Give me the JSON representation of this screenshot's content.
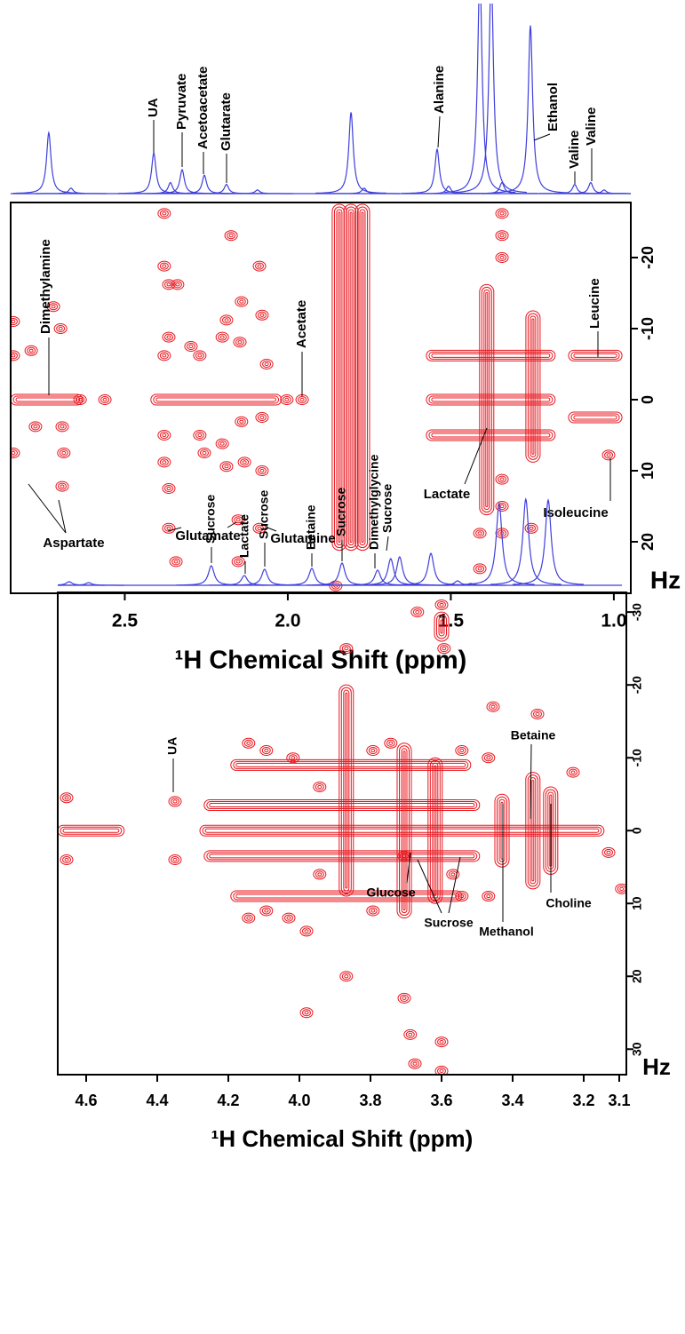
{
  "chart_data": [
    {
      "type": "jres",
      "xlabel": "¹H Chemical Shift (ppm)",
      "ylabel": "Hz",
      "xlim": [
        2.85,
        0.948
      ],
      "xticks": [
        2.5,
        {
          "value": 2,
          "label": "2.0"
        },
        1.5,
        {
          "value": 1,
          "label": "1.0"
        }
      ],
      "ylim": [
        27.25,
        -27.75
      ],
      "yticks": [
        -20,
        -10,
        0,
        10,
        20
      ],
      "projection": {
        "color": "#3f3fdd",
        "x": [
          2.733,
          2.665,
          2.411,
          2.36,
          2.324,
          2.256,
          2.188,
          2.093,
          1.806,
          1.766,
          1.542,
          1.507,
          1.411,
          1.376,
          1.343,
          1.256,
          1.12,
          1.071,
          1.03
        ],
        "values": [
          0.33,
          0.03,
          0.22,
          0.06,
          0.13,
          0.1,
          0.05,
          0.02,
          0.44,
          0.03,
          0.24,
          0.04,
          1.2,
          1.2,
          0.06,
          0.91,
          0.05,
          0.06,
          0.02
        ]
      },
      "contours": {
        "color": "#e8141c",
        "spots": {
          "x": [
            2.842,
            2.842,
            2.842,
            2.787,
            2.774,
            2.719,
            2.697,
            2.692,
            2.687,
            2.692,
            2.637,
            2.561,
            2.379,
            2.379,
            2.365,
            2.365,
            2.379,
            2.379,
            2.379,
            2.365,
            2.365,
            2.338,
            2.297,
            2.27,
            2.27,
            2.256,
            2.201,
            2.201,
            2.188,
            2.188,
            2.174,
            2.142,
            2.147,
            2.142,
            2.133,
            2.152,
            2.087,
            2.079,
            2.065,
            2.079,
            2.079,
            2.087,
            2.343,
            2.152,
            2.003,
            1.956,
            1.853,
            1.343,
            1.343,
            1.343,
            1.343,
            1.343,
            1.343,
            1.411,
            1.411,
            1.253,
            1.016
          ],
          "y": [
            -11,
            -6.2,
            7.5,
            -6.9,
            3.8,
            -13.1,
            -10,
            3.8,
            7.5,
            12.2,
            0,
            0,
            -26.2,
            -18.8,
            -16.2,
            -8.8,
            -6.2,
            5,
            8.8,
            12.5,
            18.1,
            -16.2,
            -7.5,
            -6.2,
            5,
            7.5,
            -8.8,
            6.2,
            -11.2,
            9.4,
            -23.1,
            -13.8,
            -8.1,
            3.1,
            8.8,
            16.9,
            -18.8,
            -11.9,
            -5,
            2.5,
            10,
            18.1,
            22.8,
            22.8,
            0,
            0,
            26.2,
            -26.2,
            -23.1,
            -20,
            11.2,
            15,
            18.8,
            18.8,
            23.8,
            18.1,
            7.8
          ]
        },
        "vridges": {
          "x": [
            1.842,
            1.806,
            1.771,
            1.39,
            1.248
          ],
          "y0": [
            -27.5,
            -27.5,
            -27.5,
            -16.2,
            -12.5
          ],
          "y1": [
            21.2,
            21.2,
            21.2,
            16.2,
            8.8
          ]
        },
        "hridges": {
          "y": [
            0,
            0,
            -6.2,
            0,
            5,
            -6.2,
            2.5
          ],
          "x0": [
            2.85,
            2.42,
            1.575,
            1.575,
            1.575,
            1.139,
            1.139
          ],
          "x1": [
            2.63,
            2.02,
            1.18,
            1.18,
            1.18,
            0.975,
            0.975
          ]
        }
      },
      "annotations": [
        "UA",
        "Pyruvate",
        "Acetoacetate",
        "Glutarate",
        "Alanine",
        "Ethanol",
        "Valine",
        "Valine",
        "Dimethylamine",
        "Acetate",
        "Leucine",
        "Aspartate",
        "Glutamate",
        "Glutamine",
        "Lactate",
        "Isoleucine"
      ]
    },
    {
      "type": "jres",
      "xlabel": "¹H Chemical Shift (ppm)",
      "ylabel": "Hz",
      "xlim": [
        4.68,
        3.08
      ],
      "xticks": [
        4.6,
        4.4,
        4.2,
        {
          "value": 4,
          "label": "4.0"
        },
        3.8,
        3.6,
        3.4,
        3.2,
        3.1
      ],
      "ylim": [
        33.5,
        -32.7
      ],
      "yticks": [
        -30,
        -20,
        -10,
        0,
        10,
        20,
        30
      ],
      "projection": {
        "color": "#3f3fdd",
        "x": [
          4.648,
          4.593,
          4.248,
          4.155,
          4.098,
          3.965,
          3.88,
          3.78,
          3.743,
          3.718,
          3.63,
          3.555,
          3.518,
          3.438,
          3.363,
          3.3
        ],
        "values": [
          0.04,
          0.03,
          0.22,
          0.11,
          0.18,
          0.19,
          0.25,
          0.17,
          0.3,
          0.32,
          0.36,
          0.05,
          0.02,
          0.92,
          0.97,
          0.96
        ]
      },
      "contours": {
        "color": "#e8141c",
        "spots": {
          "x": [
            4.655,
            4.655,
            4.35,
            4.35,
            3.868,
            3.668,
            3.6,
            3.593,
            3.455,
            3.33,
            3.98,
            3.98,
            3.868,
            3.705,
            3.688,
            3.675,
            3.6,
            3.6,
            3.093,
            3.13,
            4.143,
            4.093,
            4.018,
            3.793,
            3.743,
            3.543,
            3.468,
            4.143,
            4.093,
            4.03,
            3.793,
            3.543,
            3.468,
            3.568,
            3.23,
            3.943,
            3.943,
            3.705
          ],
          "y": [
            -4.5,
            4,
            -4,
            4,
            -25,
            -30,
            -31,
            -25,
            -17,
            -16,
            13.8,
            25,
            20,
            23,
            28,
            32,
            29,
            33,
            8,
            3,
            -12,
            -11,
            -10,
            -11,
            -12,
            -11,
            -10,
            12,
            11,
            12,
            11,
            9,
            9,
            6,
            -8,
            -6,
            6,
            3.5
          ]
        },
        "vridges": {
          "x": [
            3.868,
            3.705,
            3.618,
            3.43,
            3.343,
            3.293,
            3.6
          ],
          "y0": [
            -20,
            -12,
            -10,
            -5,
            -8,
            -6,
            -30
          ],
          "y1": [
            9,
            12,
            10,
            5,
            8,
            6,
            -26
          ]
        },
        "hridges": {
          "y": [
            0,
            0,
            -3.5,
            3.5,
            -9,
            9
          ],
          "x0": [
            4.68,
            4.28,
            4.268,
            4.268,
            4.193,
            4.193
          ],
          "x1": [
            4.493,
            3.143,
            3.493,
            3.493,
            3.518,
            3.543
          ]
        }
      },
      "annotations": [
        "Sucrose",
        "Lactate",
        "Sucrose",
        "Betaine",
        "Sucrose",
        "Dimethylglycine",
        "Sucrose",
        "UA",
        "Betaine",
        "Choline",
        "Methanol",
        "Glucose",
        "Sucrose"
      ]
    }
  ]
}
